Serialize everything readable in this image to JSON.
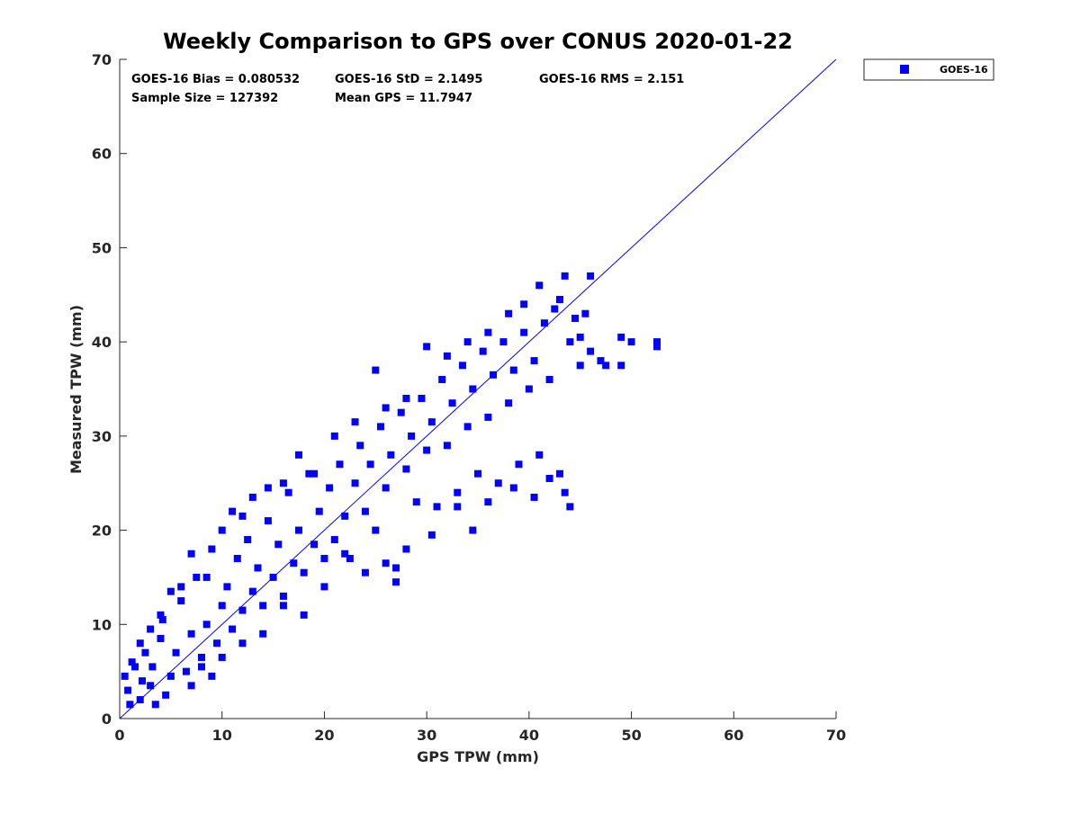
{
  "chart_data": {
    "type": "scatter",
    "title": "Weekly Comparison to GPS over CONUS 2020-01-22",
    "xlabel": "GPS TPW (mm)",
    "ylabel": "Measured TPW (mm)",
    "xlim": [
      0,
      70
    ],
    "ylim": [
      0,
      70
    ],
    "xticks": [
      "0",
      "10",
      "20",
      "30",
      "40",
      "50",
      "60",
      "70"
    ],
    "yticks": [
      "0",
      "10",
      "20",
      "30",
      "40",
      "50",
      "60",
      "70"
    ],
    "grid": false,
    "legend_position": "outside top-right",
    "colors": {
      "series": "#0000ff",
      "text": "#262626"
    },
    "stats": {
      "bias": "GOES-16 Bias = 0.080532",
      "std": "GOES-16 StD = 2.1495",
      "rms": "GOES-16 RMS = 2.151",
      "sample": "Sample Size = 127392",
      "mean": "Mean GPS = 11.7947"
    },
    "series": [
      {
        "name": "GOES-16",
        "marker": "square",
        "reference_line": {
          "from": [
            0,
            0
          ],
          "to": [
            70,
            70
          ]
        },
        "points": [
          [
            0.5,
            4.5
          ],
          [
            0.8,
            3.0
          ],
          [
            1.0,
            1.5
          ],
          [
            1.5,
            5.5
          ],
          [
            2.0,
            2.0
          ],
          [
            2.5,
            7.0
          ],
          [
            3.0,
            3.5
          ],
          [
            3.5,
            1.5
          ],
          [
            1.2,
            6.0
          ],
          [
            2.2,
            4.0
          ],
          [
            3.2,
            5.5
          ],
          [
            4.0,
            8.5
          ],
          [
            4.5,
            2.5
          ],
          [
            4.2,
            10.5
          ],
          [
            5.0,
            4.5
          ],
          [
            5.5,
            7.0
          ],
          [
            6.0,
            12.5
          ],
          [
            6.5,
            5.0
          ],
          [
            7.0,
            9.0
          ],
          [
            7.5,
            15.0
          ],
          [
            8.0,
            6.5
          ],
          [
            8.5,
            10.0
          ],
          [
            9.0,
            18.0
          ],
          [
            9.5,
            8.0
          ],
          [
            10.0,
            12.0
          ],
          [
            10.5,
            14.0
          ],
          [
            11.0,
            9.5
          ],
          [
            11.5,
            17.0
          ],
          [
            12.0,
            11.5
          ],
          [
            12.5,
            19.0
          ],
          [
            13.0,
            13.5
          ],
          [
            13.5,
            16.0
          ],
          [
            14.0,
            12.0
          ],
          [
            14.5,
            21.0
          ],
          [
            15.0,
            15.0
          ],
          [
            15.5,
            18.5
          ],
          [
            16.0,
            13.0
          ],
          [
            16.5,
            24.0
          ],
          [
            17.0,
            16.5
          ],
          [
            17.5,
            20.0
          ],
          [
            18.0,
            15.5
          ],
          [
            18.5,
            26.0
          ],
          [
            19.0,
            18.5
          ],
          [
            19.5,
            22.0
          ],
          [
            20.0,
            17.0
          ],
          [
            20.5,
            24.5
          ],
          [
            21.0,
            19.0
          ],
          [
            21.5,
            27.0
          ],
          [
            22.0,
            21.5
          ],
          [
            22.5,
            17.0
          ],
          [
            23.0,
            25.0
          ],
          [
            23.5,
            29.0
          ],
          [
            24.0,
            22.0
          ],
          [
            24.5,
            27.0
          ],
          [
            25.0,
            20.0
          ],
          [
            25.5,
            31.0
          ],
          [
            26.0,
            24.5
          ],
          [
            26.5,
            28.0
          ],
          [
            27.0,
            16.0
          ],
          [
            27.5,
            32.5
          ],
          [
            28.0,
            26.5
          ],
          [
            28.5,
            30.0
          ],
          [
            29.0,
            23.0
          ],
          [
            29.5,
            34.0
          ],
          [
            30.0,
            28.5
          ],
          [
            30.5,
            31.5
          ],
          [
            31.0,
            22.5
          ],
          [
            31.5,
            36.0
          ],
          [
            32.0,
            29.0
          ],
          [
            32.5,
            33.5
          ],
          [
            33.0,
            24.0
          ],
          [
            33.5,
            37.5
          ],
          [
            34.0,
            31.0
          ],
          [
            34.5,
            35.0
          ],
          [
            35.0,
            26.0
          ],
          [
            35.5,
            39.0
          ],
          [
            36.0,
            32.0
          ],
          [
            36.5,
            36.5
          ],
          [
            37.0,
            25.0
          ],
          [
            37.5,
            40.0
          ],
          [
            38.0,
            33.5
          ],
          [
            38.5,
            37.0
          ],
          [
            39.0,
            27.0
          ],
          [
            39.5,
            41.0
          ],
          [
            40.0,
            35.0
          ],
          [
            40.5,
            38.0
          ],
          [
            41.0,
            28.0
          ],
          [
            41.5,
            42.0
          ],
          [
            42.0,
            36.0
          ],
          [
            42.5,
            43.5
          ],
          [
            43.0,
            26.0
          ],
          [
            43.5,
            47.0
          ],
          [
            44.0,
            40.0
          ],
          [
            44.5,
            42.5
          ],
          [
            45.0,
            37.5
          ],
          [
            45.5,
            43.0
          ],
          [
            46.0,
            47.0
          ],
          [
            47.0,
            38.0
          ],
          [
            47.5,
            37.5
          ],
          [
            49.0,
            40.5
          ],
          [
            49.0,
            37.5
          ],
          [
            50.0,
            40.0
          ],
          [
            52.5,
            40.0
          ],
          [
            52.5,
            39.5
          ],
          [
            43.5,
            24.0
          ],
          [
            44.0,
            22.5
          ],
          [
            42.0,
            25.5
          ],
          [
            40.5,
            23.5
          ],
          [
            38.5,
            24.5
          ],
          [
            36.0,
            23.0
          ],
          [
            34.5,
            20.0
          ],
          [
            33.0,
            22.5
          ],
          [
            30.5,
            19.5
          ],
          [
            28.0,
            18.0
          ],
          [
            27.0,
            14.5
          ],
          [
            26.0,
            16.5
          ],
          [
            24.0,
            15.5
          ],
          [
            22.0,
            17.5
          ],
          [
            20.0,
            14.0
          ],
          [
            18.0,
            11.0
          ],
          [
            16.0,
            12.0
          ],
          [
            14.0,
            9.0
          ],
          [
            12.0,
            8.0
          ],
          [
            10.0,
            6.5
          ],
          [
            9.0,
            4.5
          ],
          [
            8.0,
            5.5
          ],
          [
            7.0,
            3.5
          ],
          [
            6.0,
            14.0
          ],
          [
            5.0,
            13.5
          ],
          [
            4.0,
            11.0
          ],
          [
            3.0,
            9.5
          ],
          [
            2.0,
            8.0
          ],
          [
            7.0,
            17.5
          ],
          [
            8.5,
            15.0
          ],
          [
            10.0,
            20.0
          ],
          [
            11.0,
            22.0
          ],
          [
            12.0,
            21.5
          ],
          [
            13.0,
            23.5
          ],
          [
            14.5,
            24.5
          ],
          [
            16.0,
            25.0
          ],
          [
            17.5,
            28.0
          ],
          [
            19.0,
            26.0
          ],
          [
            21.0,
            30.0
          ],
          [
            23.0,
            31.5
          ],
          [
            25.0,
            37.0
          ],
          [
            26.0,
            33.0
          ],
          [
            28.0,
            34.0
          ],
          [
            30.0,
            39.5
          ],
          [
            32.0,
            38.5
          ],
          [
            34.0,
            40.0
          ],
          [
            36.0,
            41.0
          ],
          [
            38.0,
            43.0
          ],
          [
            39.5,
            44.0
          ],
          [
            41.0,
            46.0
          ],
          [
            43.0,
            44.5
          ],
          [
            45.0,
            40.5
          ],
          [
            46.0,
            39.0
          ]
        ]
      }
    ]
  }
}
